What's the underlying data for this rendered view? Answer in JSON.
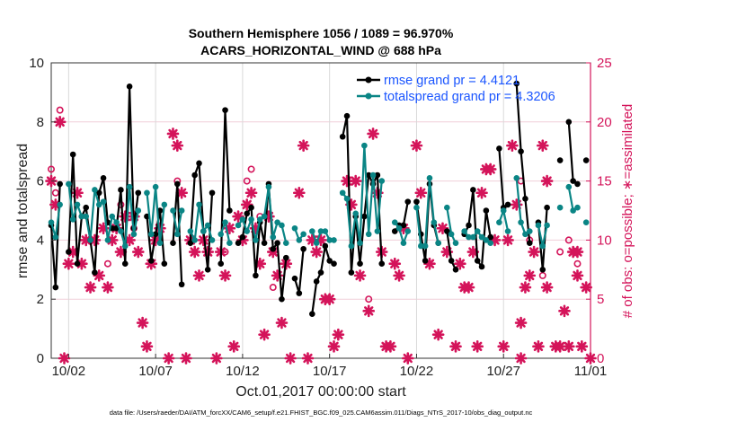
{
  "chart_data": {
    "type": "line",
    "title": [
      "Southern Hemisphere 1056 / 1089 = 96.970%",
      "ACARS_HORIZONTAL_WIND @ 688 hPa"
    ],
    "xlabel": "Oct.01,2017 00:00:00 start",
    "ylabel": "rmse and totalspread",
    "ylabel_right": "# of obs: o=possible; ∗=assimilated",
    "footer": "data file: /Users/raeder/DAI/ATM_forcXX/CAM6_setup/f.e21.FHIST_BGC.f09_025.CAM6assim.011/Diags_NTrS_2017-10/obs_diag_output.nc",
    "xlim": [
      "10/01 00:00",
      "11/01 00:00"
    ],
    "xticks": [
      "10/02",
      "10/07",
      "10/12",
      "10/17",
      "10/22",
      "10/27",
      "11/01"
    ],
    "ylim": [
      0,
      10
    ],
    "yticks": [
      "0",
      "2",
      "4",
      "6",
      "8",
      "10"
    ],
    "ylim_right": [
      0,
      25
    ],
    "yticks_right": [
      "0",
      "5",
      "10",
      "15",
      "20",
      "25"
    ],
    "grid": true,
    "legend_position": "top-right",
    "colors": {
      "rmse": "#000000",
      "totalspread": "#0a8585",
      "obs": "#d4145a",
      "legend_text": "#1a55ff",
      "grid_h": "#f0cfd9",
      "grid_v": "#d9d9d9"
    },
    "x": [
      "10/01 00:00",
      "10/01 06:00",
      "10/01 12:00",
      "10/01 18:00",
      "10/02 00:00",
      "10/02 06:00",
      "10/02 12:00",
      "10/02 18:00",
      "10/03 00:00",
      "10/03 06:00",
      "10/03 12:00",
      "10/03 18:00",
      "10/04 00:00",
      "10/04 06:00",
      "10/04 12:00",
      "10/04 18:00",
      "10/05 00:00",
      "10/05 06:00",
      "10/05 12:00",
      "10/05 18:00",
      "10/06 00:00",
      "10/06 06:00",
      "10/06 12:00",
      "10/06 18:00",
      "10/07 00:00",
      "10/07 06:00",
      "10/07 12:00",
      "10/07 18:00",
      "10/08 00:00",
      "10/08 06:00",
      "10/08 12:00",
      "10/08 18:00",
      "10/09 00:00",
      "10/09 06:00",
      "10/09 12:00",
      "10/09 18:00",
      "10/10 00:00",
      "10/10 06:00",
      "10/10 12:00",
      "10/10 18:00",
      "10/11 00:00",
      "10/11 06:00",
      "10/11 12:00",
      "10/11 18:00",
      "10/12 00:00",
      "10/12 06:00",
      "10/12 12:00",
      "10/12 18:00",
      "10/13 00:00",
      "10/13 06:00",
      "10/13 12:00",
      "10/13 18:00",
      "10/14 00:00",
      "10/14 06:00",
      "10/14 12:00",
      "10/14 18:00",
      "10/15 00:00",
      "10/15 06:00",
      "10/15 12:00",
      "10/15 18:00",
      "10/16 00:00",
      "10/16 06:00",
      "10/16 12:00",
      "10/16 18:00",
      "10/17 00:00",
      "10/17 06:00",
      "10/17 12:00",
      "10/17 18:00",
      "10/18 00:00",
      "10/18 06:00",
      "10/18 12:00",
      "10/18 18:00",
      "10/19 00:00",
      "10/19 06:00",
      "10/19 12:00",
      "10/19 18:00",
      "10/20 00:00",
      "10/20 06:00",
      "10/20 12:00",
      "10/20 18:00",
      "10/21 00:00",
      "10/21 06:00",
      "10/21 12:00",
      "10/21 18:00",
      "10/22 00:00",
      "10/22 06:00",
      "10/22 12:00",
      "10/22 18:00",
      "10/23 00:00",
      "10/23 06:00",
      "10/23 12:00",
      "10/23 18:00",
      "10/24 00:00",
      "10/24 06:00",
      "10/24 12:00",
      "10/24 18:00",
      "10/25 00:00",
      "10/25 06:00",
      "10/25 12:00",
      "10/25 18:00",
      "10/26 00:00",
      "10/26 06:00",
      "10/26 12:00",
      "10/26 18:00",
      "10/27 00:00",
      "10/27 06:00",
      "10/27 12:00",
      "10/27 18:00",
      "10/28 00:00",
      "10/28 06:00",
      "10/28 12:00",
      "10/28 18:00",
      "10/29 00:00",
      "10/29 06:00",
      "10/29 12:00",
      "10/29 18:00",
      "10/30 00:00",
      "10/30 06:00",
      "10/30 12:00",
      "10/30 18:00",
      "10/31 00:00",
      "10/31 06:00",
      "10/31 12:00",
      "10/31 18:00"
    ],
    "series": [
      {
        "name": "rmse grand pr = 4.4121",
        "axis": "left",
        "values": [
          4.5,
          2.4,
          5.9,
          null,
          3.6,
          6.9,
          3.2,
          4.8,
          5.1,
          4.0,
          2.9,
          5.6,
          6.1,
          4.6,
          4.4,
          4.4,
          5.7,
          3.2,
          9.2,
          4.4,
          5.6,
          null,
          4.8,
          3.3,
          4.2,
          5.0,
          3.2,
          null,
          3.9,
          5.9,
          2.5,
          null,
          3.9,
          6.2,
          6.6,
          4.3,
          3.0,
          5.6,
          null,
          3.2,
          8.4,
          5.0,
          null,
          3.9,
          4.1,
          4.9,
          5.1,
          2.8,
          4.6,
          3.9,
          5.9,
          3.7,
          3.9,
          2.0,
          3.4,
          null,
          2.7,
          2.2,
          3.7,
          null,
          1.5,
          2.6,
          2.9,
          3.8,
          3.3,
          3.2,
          null,
          7.5,
          8.2,
          2.9,
          4.8,
          3.2,
          4.8,
          6.2,
          5.9,
          6.2,
          3.2,
          null,
          null,
          4.3,
          4.5,
          4.5,
          5.3,
          null,
          5.3,
          4.2,
          3.3,
          5.9,
          4.5,
          3.9,
          null,
          4.3,
          3.3,
          3.0,
          null,
          4.2,
          4.5,
          5.7,
          3.3,
          3.1,
          5.0,
          4.1,
          null,
          7.1,
          5.1,
          5.2,
          null,
          9.3,
          7.0,
          5.4,
          3.9,
          null,
          4.6,
          3.0,
          5.1,
          null,
          null,
          6.7,
          null,
          8.0,
          6.0,
          5.9,
          null,
          6.7
        ]
      },
      {
        "name": "totalspread grand pr = 4.3206",
        "axis": "left",
        "values": [
          4.6,
          4.1,
          5.2,
          null,
          5.9,
          4.7,
          5.2,
          4.8,
          4.8,
          4.0,
          5.7,
          5.2,
          5.3,
          4.0,
          4.8,
          4.6,
          4.3,
          3.8,
          5.8,
          4.2,
          5.0,
          null,
          5.6,
          4.2,
          5.8,
          3.9,
          5.2,
          null,
          5.0,
          4.2,
          5.0,
          null,
          4.3,
          4.0,
          5.2,
          4.3,
          4.5,
          4.0,
          null,
          4.2,
          4.6,
          3.9,
          null,
          4.5,
          4.7,
          4.3,
          4.7,
          4.0,
          4.7,
          4.8,
          5.8,
          4.1,
          4.6,
          4.5,
          3.9,
          null,
          4.4,
          4.0,
          4.2,
          null,
          4.3,
          3.9,
          4.3,
          4.3,
          4.0,
          4.0,
          null,
          5.6,
          5.4,
          3.8,
          4.9,
          3.9,
          7.2,
          4.2,
          6.2,
          4.3,
          6.0,
          null,
          null,
          4.6,
          4.4,
          3.9,
          4.3,
          null,
          5.1,
          3.8,
          3.8,
          6.1,
          4.6,
          3.9,
          null,
          5.1,
          4.2,
          3.9,
          null,
          4.3,
          4.1,
          4.1,
          4.3,
          4.1,
          4.0,
          3.9,
          null,
          4.6,
          5.0,
          4.3,
          null,
          6.1,
          4.6,
          4.2,
          4.3,
          null,
          4.5,
          3.8,
          4.5,
          null,
          null,
          5.1,
          null,
          5.8,
          5.0,
          5.1,
          null,
          4.6
        ]
      }
    ],
    "obs_assimilated": [
      [
        "10/01 00:00",
        15
      ],
      [
        "10/01 06:00",
        13
      ],
      [
        "10/01 12:00",
        20
      ],
      [
        "10/01 18:00",
        0
      ],
      [
        "10/02 00:00",
        8
      ],
      [
        "10/02 06:00",
        9
      ],
      [
        "10/02 12:00",
        14
      ],
      [
        "10/02 18:00",
        8
      ],
      [
        "10/03 00:00",
        10
      ],
      [
        "10/03 06:00",
        6
      ],
      [
        "10/03 12:00",
        10
      ],
      [
        "10/03 18:00",
        7
      ],
      [
        "10/04 00:00",
        11
      ],
      [
        "10/04 06:00",
        6
      ],
      [
        "10/04 12:00",
        10
      ],
      [
        "10/04 18:00",
        11
      ],
      [
        "10/05 00:00",
        9
      ],
      [
        "10/05 06:00",
        12
      ],
      [
        "10/05 12:00",
        10
      ],
      [
        "10/05 18:00",
        12
      ],
      [
        "10/06 00:00",
        9
      ],
      [
        "10/06 06:00",
        3
      ],
      [
        "10/06 12:00",
        1
      ],
      [
        "10/06 18:00",
        8
      ],
      [
        "10/07 00:00",
        10
      ],
      [
        "10/07 06:00",
        11
      ],
      [
        "10/07 18:00",
        0
      ],
      [
        "10/08 00:00",
        19
      ],
      [
        "10/08 06:00",
        18
      ],
      [
        "10/08 12:00",
        14
      ],
      [
        "10/08 18:00",
        0
      ],
      [
        "10/09 00:00",
        10
      ],
      [
        "10/09 06:00",
        9
      ],
      [
        "10/09 12:00",
        7
      ],
      [
        "10/09 18:00",
        10
      ],
      [
        "10/10 00:00",
        9
      ],
      [
        "10/10 12:00",
        0
      ],
      [
        "10/10 18:00",
        9
      ],
      [
        "10/11 00:00",
        7
      ],
      [
        "10/11 06:00",
        11
      ],
      [
        "10/11 12:00",
        1
      ],
      [
        "10/11 18:00",
        12
      ],
      [
        "10/12 00:00",
        10
      ],
      [
        "10/12 06:00",
        13
      ],
      [
        "10/12 12:00",
        14
      ],
      [
        "10/12 18:00",
        11
      ],
      [
        "10/13 00:00",
        8
      ],
      [
        "10/13 06:00",
        2
      ],
      [
        "10/13 12:00",
        12
      ],
      [
        "10/13 18:00",
        9
      ],
      [
        "10/14 00:00",
        7
      ],
      [
        "10/14 06:00",
        3
      ],
      [
        "10/14 12:00",
        8
      ],
      [
        "10/14 18:00",
        0
      ],
      [
        "10/15 06:00",
        14
      ],
      [
        "10/15 12:00",
        18
      ],
      [
        "10/15 18:00",
        0
      ],
      [
        "10/16 00:00",
        10
      ],
      [
        "10/16 06:00",
        9
      ],
      [
        "10/16 12:00",
        10
      ],
      [
        "10/16 18:00",
        5
      ],
      [
        "10/17 00:00",
        5
      ],
      [
        "10/17 06:00",
        1
      ],
      [
        "10/17 12:00",
        2
      ],
      [
        "10/18 00:00",
        15
      ],
      [
        "10/18 06:00",
        13
      ],
      [
        "10/18 12:00",
        15
      ],
      [
        "10/18 18:00",
        7
      ],
      [
        "10/19 06:00",
        4
      ],
      [
        "10/19 12:00",
        19
      ],
      [
        "10/19 18:00",
        14
      ],
      [
        "10/20 00:00",
        9
      ],
      [
        "10/20 06:00",
        1
      ],
      [
        "10/20 12:00",
        1
      ],
      [
        "10/20 18:00",
        8
      ],
      [
        "10/21 00:00",
        7
      ],
      [
        "10/21 06:00",
        11
      ],
      [
        "10/21 12:00",
        0
      ],
      [
        "10/22 00:00",
        18
      ],
      [
        "10/22 06:00",
        14
      ],
      [
        "10/22 18:00",
        8
      ],
      [
        "10/23 06:00",
        2
      ],
      [
        "10/23 12:00",
        11
      ],
      [
        "10/23 18:00",
        9
      ],
      [
        "10/24 06:00",
        1
      ],
      [
        "10/24 12:00",
        8
      ],
      [
        "10/24 18:00",
        6
      ],
      [
        "10/25 00:00",
        6
      ],
      [
        "10/25 06:00",
        9
      ],
      [
        "10/25 12:00",
        1
      ],
      [
        "10/25 18:00",
        14
      ],
      [
        "10/26 00:00",
        16
      ],
      [
        "10/26 06:00",
        16
      ],
      [
        "10/26 12:00",
        10
      ],
      [
        "10/27 00:00",
        1
      ],
      [
        "10/27 06:00",
        10
      ],
      [
        "10/27 12:00",
        18
      ],
      [
        "10/27 18:00",
        13
      ],
      [
        "10/28 00:00",
        0
      ],
      [
        "10/28 00:00",
        3
      ],
      [
        "10/28 06:00",
        6
      ],
      [
        "10/28 12:00",
        7
      ],
      [
        "10/28 18:00",
        9
      ],
      [
        "10/29 00:00",
        1
      ],
      [
        "10/29 06:00",
        18
      ],
      [
        "10/29 12:00",
        15
      ],
      [
        "10/29 12:00",
        6
      ],
      [
        "10/30 00:00",
        1
      ],
      [
        "10/30 06:00",
        1
      ],
      [
        "10/30 12:00",
        4
      ],
      [
        "10/30 18:00",
        1
      ],
      [
        "10/31 00:00",
        9
      ],
      [
        "10/31 06:00",
        9
      ],
      [
        "10/31 06:00",
        7
      ],
      [
        "10/31 12:00",
        1
      ],
      [
        "10/31 18:00",
        6
      ],
      [
        "11/01 00:00",
        0
      ]
    ],
    "obs_possible": [
      [
        "10/01 00:00",
        16
      ],
      [
        "10/01 06:00",
        14
      ],
      [
        "10/01 12:00",
        21
      ],
      [
        "10/04 06:00",
        8
      ],
      [
        "10/05 00:00",
        13
      ],
      [
        "10/05 18:00",
        11
      ],
      [
        "10/08 06:00",
        15
      ],
      [
        "10/11 00:00",
        9
      ],
      [
        "10/12 06:00",
        15
      ],
      [
        "10/12 12:00",
        16
      ],
      [
        "10/13 00:00",
        12
      ],
      [
        "10/13 18:00",
        6
      ],
      [
        "10/19 06:00",
        5
      ],
      [
        "10/28 00:00",
        15
      ],
      [
        "10/28 12:00",
        10
      ],
      [
        "10/29 06:00",
        7
      ],
      [
        "10/30 06:00",
        9
      ],
      [
        "10/30 18:00",
        10
      ],
      [
        "10/31 06:00",
        8
      ]
    ]
  }
}
